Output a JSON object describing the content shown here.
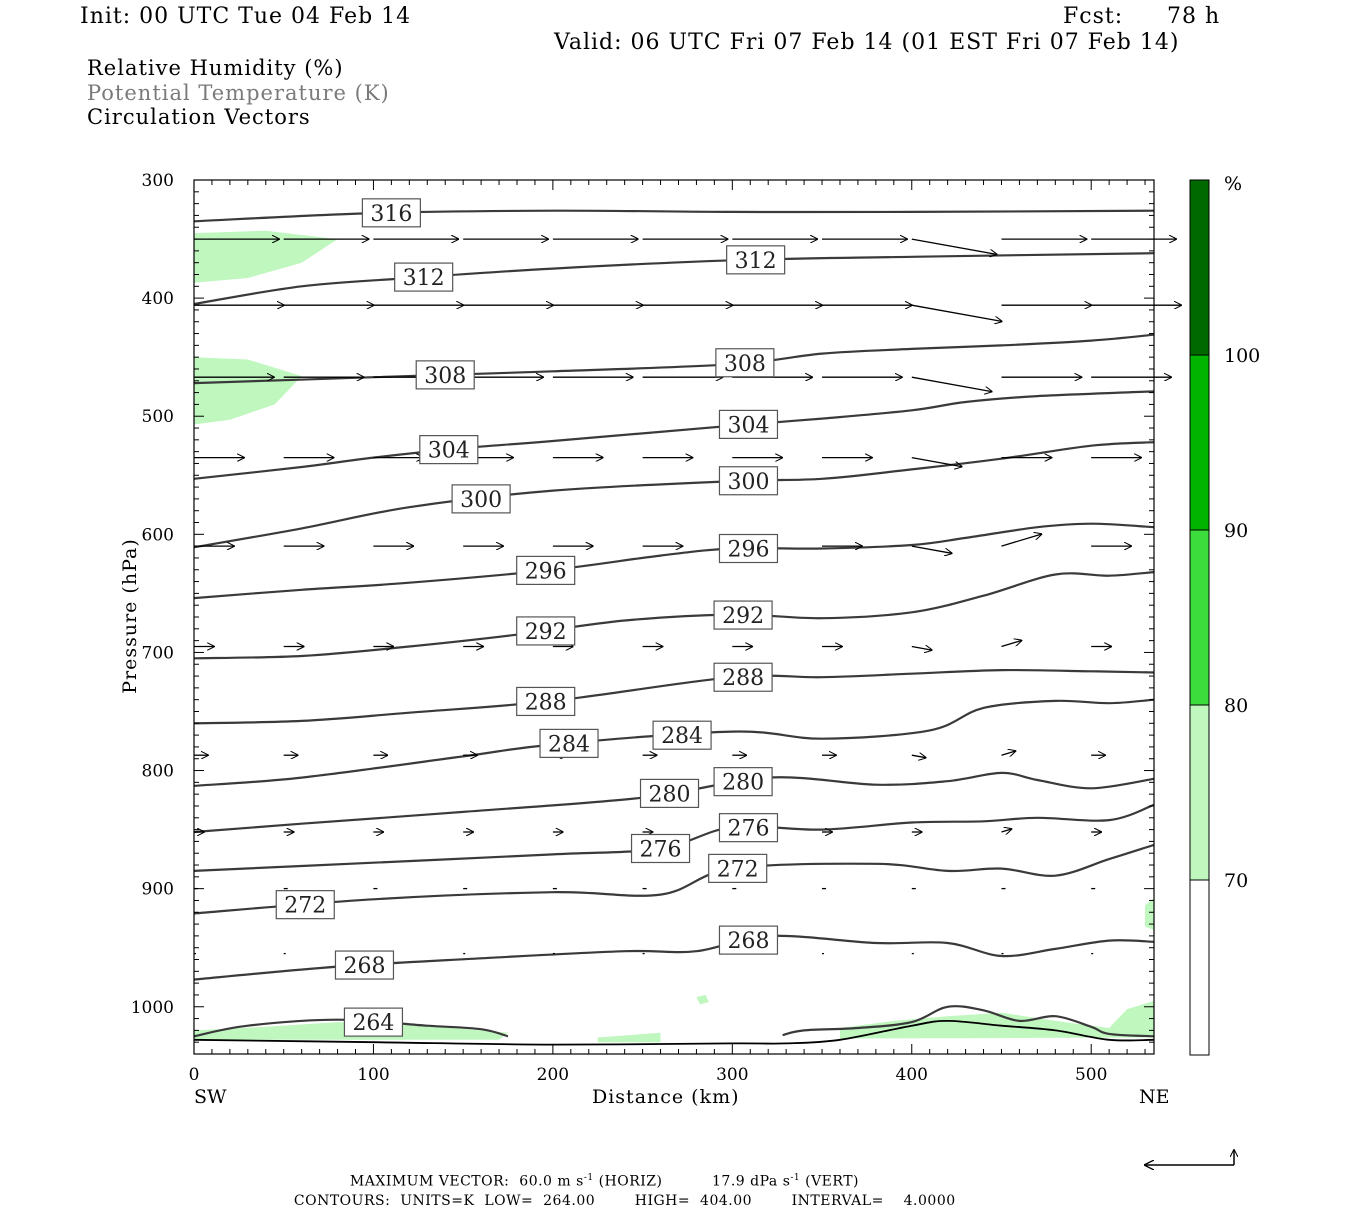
{
  "header": {
    "init": "Init: 00 UTC Tue 04 Feb 14",
    "fcst_label": "Fcst:",
    "fcst_value": "78 h",
    "valid": "Valid: 06 UTC Fri 07 Feb 14 (01 EST Fri 07 Feb 14)"
  },
  "legend": {
    "rh": "Relative Humidity (%)",
    "theta": "Potential Temperature (K)",
    "vectors": "Circulation Vectors"
  },
  "colorbar": {
    "unit": "%",
    "ticks": [
      "100",
      "90",
      "80",
      "70"
    ],
    "colors": [
      "#006a00",
      "#00b400",
      "#3cdc3c",
      "#bff7bf",
      "#ffffff"
    ],
    "bands_top_to_bottom": [
      ">100",
      "90-100",
      "80-90",
      "70-80",
      "<70"
    ]
  },
  "footer": {
    "max_vector_label": "MAXIMUM VECTOR:",
    "horiz": "60.0 m s",
    "horiz_sup": "-1",
    "horiz_tag": "(HORIZ)",
    "vert": "17.9 dPa s",
    "vert_sup": "-1",
    "vert_tag": "(VERT)",
    "contours": "CONTOURS:",
    "units": "UNITS=K",
    "low_label": "LOW=",
    "low": "264.00",
    "high_label": "HIGH=",
    "high": "404.00",
    "interval_label": "INTERVAL=",
    "interval": "4.0000"
  },
  "chart_data": {
    "type": "cross-section",
    "xlabel": "Distance (km)",
    "ylabel": "Pressure (hPa)",
    "x_ticks": [
      0,
      100,
      200,
      300,
      400,
      500
    ],
    "x_tick_labels": [
      "0",
      "100",
      "200",
      "300",
      "400",
      "500"
    ],
    "y_ticks": [
      300,
      400,
      500,
      600,
      700,
      800,
      900,
      1000
    ],
    "y_tick_labels": [
      "300",
      "400",
      "500",
      "600",
      "700",
      "800",
      "900",
      "1000"
    ],
    "xlim": [
      0,
      535
    ],
    "ylim": [
      1040,
      300
    ],
    "left_end": "SW",
    "right_end": "NE",
    "theta_contours": [
      {
        "label": "316",
        "points": [
          [
            0,
            335
          ],
          [
            100,
            328
          ],
          [
            200,
            326
          ],
          [
            300,
            327
          ],
          [
            400,
            327
          ],
          [
            535,
            326
          ]
        ]
      },
      {
        "label": "312",
        "points": [
          [
            0,
            405
          ],
          [
            60,
            390
          ],
          [
            120,
            383
          ],
          [
            200,
            375
          ],
          [
            300,
            368
          ],
          [
            400,
            365
          ],
          [
            535,
            362
          ]
        ]
      },
      {
        "label": "308",
        "points": [
          [
            0,
            472
          ],
          [
            100,
            467
          ],
          [
            200,
            462
          ],
          [
            300,
            456
          ],
          [
            350,
            447
          ],
          [
            400,
            443
          ],
          [
            450,
            440
          ],
          [
            500,
            436
          ],
          [
            535,
            431
          ]
        ]
      },
      {
        "label": "304",
        "points": [
          [
            0,
            553
          ],
          [
            60,
            543
          ],
          [
            100,
            535
          ],
          [
            150,
            527
          ],
          [
            200,
            521
          ],
          [
            300,
            508
          ],
          [
            350,
            502
          ],
          [
            400,
            495
          ],
          [
            430,
            488
          ],
          [
            470,
            483
          ],
          [
            535,
            479
          ]
        ]
      },
      {
        "label": "300",
        "points": [
          [
            0,
            611
          ],
          [
            60,
            595
          ],
          [
            120,
            577
          ],
          [
            200,
            563
          ],
          [
            300,
            555
          ],
          [
            350,
            553
          ],
          [
            400,
            545
          ],
          [
            450,
            536
          ],
          [
            500,
            525
          ],
          [
            535,
            522
          ]
        ]
      },
      {
        "label": "296",
        "points": [
          [
            0,
            654
          ],
          [
            60,
            647
          ],
          [
            120,
            641
          ],
          [
            200,
            630
          ],
          [
            260,
            618
          ],
          [
            300,
            612
          ],
          [
            350,
            612
          ],
          [
            400,
            609
          ],
          [
            430,
            603
          ],
          [
            470,
            594
          ],
          [
            500,
            591
          ],
          [
            535,
            594
          ]
        ]
      },
      {
        "label": "292",
        "points": [
          [
            0,
            705
          ],
          [
            60,
            703
          ],
          [
            120,
            695
          ],
          [
            180,
            685
          ],
          [
            240,
            673
          ],
          [
            300,
            668
          ],
          [
            350,
            671
          ],
          [
            400,
            666
          ],
          [
            440,
            652
          ],
          [
            480,
            634
          ],
          [
            510,
            635
          ],
          [
            535,
            632
          ]
        ]
      },
      {
        "label": "288",
        "points": [
          [
            0,
            760
          ],
          [
            60,
            758
          ],
          [
            120,
            751
          ],
          [
            200,
            741
          ],
          [
            300,
            721
          ],
          [
            350,
            721
          ],
          [
            400,
            718
          ],
          [
            450,
            715
          ],
          [
            500,
            716
          ],
          [
            535,
            717
          ]
        ]
      },
      {
        "label": "284",
        "points": [
          [
            0,
            813
          ],
          [
            60,
            806
          ],
          [
            150,
            788
          ],
          [
            200,
            778
          ],
          [
            300,
            767
          ],
          [
            350,
            773
          ],
          [
            410,
            766
          ],
          [
            440,
            747
          ],
          [
            480,
            741
          ],
          [
            510,
            743
          ],
          [
            535,
            740
          ]
        ]
      },
      {
        "label": "280",
        "points": [
          [
            0,
            852
          ],
          [
            60,
            845
          ],
          [
            150,
            835
          ],
          [
            250,
            823
          ],
          [
            320,
            806
          ],
          [
            380,
            812
          ],
          [
            420,
            809
          ],
          [
            450,
            802
          ],
          [
            470,
            808
          ],
          [
            500,
            815
          ],
          [
            535,
            807
          ]
        ]
      },
      {
        "label": "276",
        "points": [
          [
            0,
            885
          ],
          [
            100,
            878
          ],
          [
            200,
            871
          ],
          [
            260,
            866
          ],
          [
            300,
            848
          ],
          [
            350,
            850
          ],
          [
            400,
            844
          ],
          [
            440,
            843
          ],
          [
            470,
            840
          ],
          [
            510,
            842
          ],
          [
            535,
            829
          ]
        ]
      },
      {
        "label": "272",
        "points": [
          [
            0,
            921
          ],
          [
            100,
            909
          ],
          [
            200,
            903
          ],
          [
            260,
            905
          ],
          [
            300,
            883
          ],
          [
            380,
            879
          ],
          [
            420,
            885
          ],
          [
            450,
            883
          ],
          [
            480,
            889
          ],
          [
            510,
            875
          ],
          [
            535,
            863
          ]
        ]
      },
      {
        "label": "268",
        "points": [
          [
            0,
            977
          ],
          [
            80,
            966
          ],
          [
            160,
            959
          ],
          [
            240,
            953
          ],
          [
            280,
            953
          ],
          [
            320,
            940
          ],
          [
            380,
            946
          ],
          [
            420,
            946
          ],
          [
            450,
            957
          ],
          [
            480,
            951
          ],
          [
            510,
            944
          ],
          [
            535,
            945
          ]
        ]
      },
      {
        "label": "264",
        "points": [
          [
            0,
            1025
          ],
          [
            30,
            1016
          ],
          [
            80,
            1011
          ],
          [
            130,
            1016
          ],
          [
            160,
            1019
          ],
          [
            175,
            1025
          ]
        ]
      }
    ],
    "theta_contour_264_east": [
      [
        328,
        1024
      ],
      [
        340,
        1020
      ],
      [
        370,
        1018
      ],
      [
        400,
        1013
      ],
      [
        420,
        1000
      ],
      [
        440,
        1003
      ],
      [
        460,
        1012
      ],
      [
        480,
        1008
      ],
      [
        500,
        1017
      ],
      [
        510,
        1023
      ],
      [
        535,
        1025
      ]
    ],
    "ground": [
      [
        0,
        1028
      ],
      [
        100,
        1030
      ],
      [
        200,
        1032
      ],
      [
        300,
        1031
      ],
      [
        330,
        1031
      ],
      [
        360,
        1028
      ],
      [
        400,
        1016
      ],
      [
        420,
        1012
      ],
      [
        450,
        1016
      ],
      [
        480,
        1020
      ],
      [
        510,
        1028
      ],
      [
        535,
        1028
      ]
    ],
    "rh_shading": [
      {
        "band": "70-80",
        "polygon": [
          [
            0,
            345
          ],
          [
            40,
            343
          ],
          [
            80,
            350
          ],
          [
            60,
            370
          ],
          [
            30,
            383
          ],
          [
            0,
            387
          ]
        ]
      },
      {
        "band": "70-80",
        "polygon": [
          [
            0,
            450
          ],
          [
            30,
            452
          ],
          [
            60,
            466
          ],
          [
            45,
            490
          ],
          [
            20,
            503
          ],
          [
            0,
            507
          ]
        ]
      },
      {
        "band": "70-80",
        "polygon": [
          [
            0,
            1020
          ],
          [
            40,
            1017
          ],
          [
            80,
            1013
          ],
          [
            130,
            1016
          ],
          [
            175,
            1022
          ],
          [
            170,
            1028
          ],
          [
            0,
            1028
          ]
        ]
      },
      {
        "band": "70-80",
        "polygon": [
          [
            225,
            1026
          ],
          [
            260,
            1022
          ],
          [
            260,
            1030
          ],
          [
            225,
            1030
          ]
        ]
      },
      {
        "band": "70-80",
        "polygon": [
          [
            280,
            992
          ],
          [
            285,
            990
          ],
          [
            287,
            996
          ],
          [
            282,
            998
          ]
        ]
      },
      {
        "band": "70-80",
        "polygon": [
          [
            360,
            1018
          ],
          [
            390,
            1012
          ],
          [
            420,
            1008
          ],
          [
            450,
            1005
          ],
          [
            480,
            1012
          ],
          [
            510,
            1018
          ],
          [
            520,
            1002
          ],
          [
            535,
            995
          ],
          [
            535,
            1026
          ],
          [
            360,
            1027
          ]
        ]
      },
      {
        "band": "70-80",
        "polygon": [
          [
            530,
            914
          ],
          [
            535,
            908
          ],
          [
            535,
            935
          ],
          [
            530,
            932
          ]
        ]
      }
    ],
    "vector_rows_hPa": [
      350,
      406,
      467,
      535,
      610,
      695,
      787,
      852,
      900,
      955
    ],
    "vector_x_km": [
      0,
      50,
      100,
      150,
      200,
      250,
      300,
      350,
      400,
      450,
      500
    ]
  }
}
